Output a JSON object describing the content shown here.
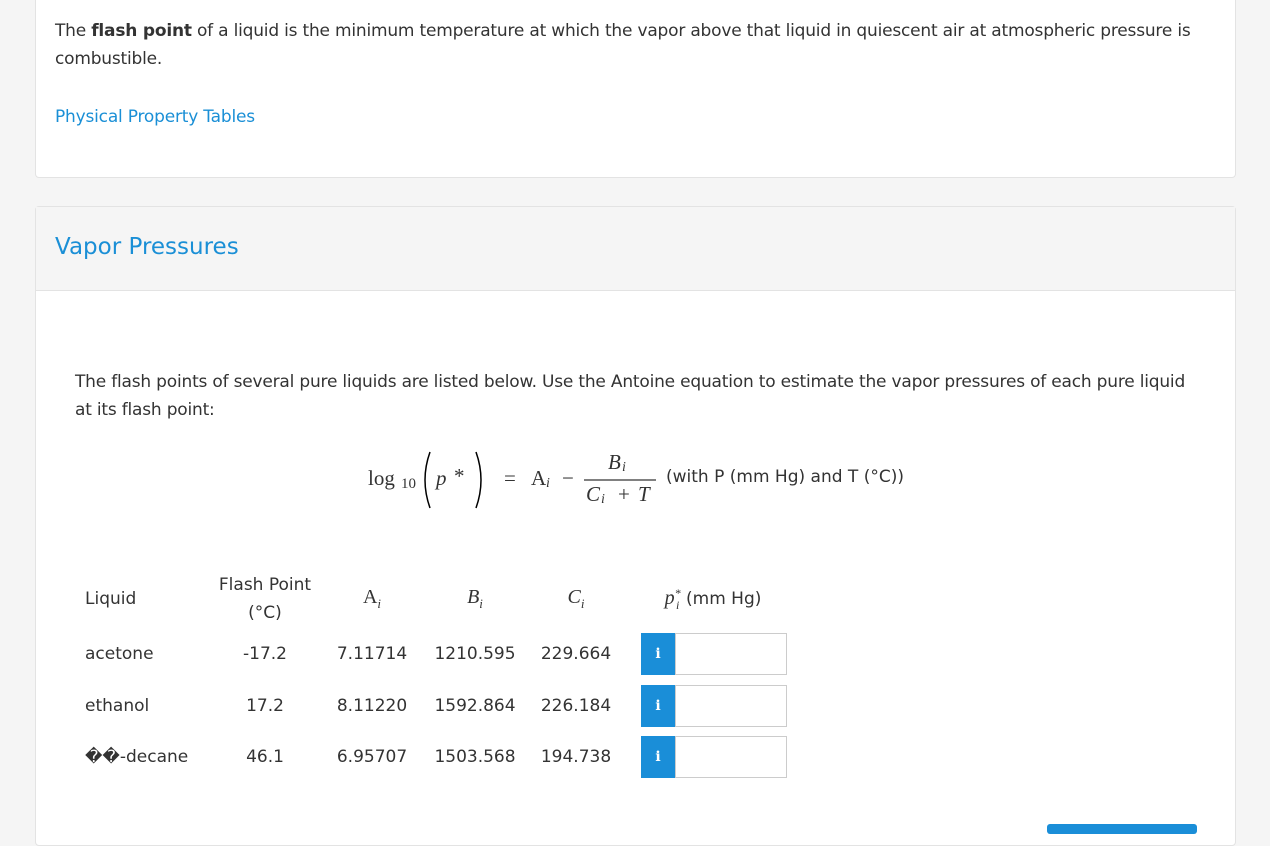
{
  "intro": {
    "before": "The ",
    "bold": "flash point",
    "after": " of a liquid is the minimum temperature at which the vapor above that liquid in quiescent air at atmospheric pressure is combustible.",
    "link": "Physical Property Tables"
  },
  "section": {
    "title": "Vapor Pressures",
    "question": "The flash points of several pure liquids are listed below. Use the Antoine equation to estimate the vapor pressures of each pure liquid at its flash point:",
    "equation": {
      "log": "log",
      "base": "10",
      "p": "p",
      "star": "*",
      "equals": "=",
      "A": "A",
      "A_sub": "i",
      "minus": "−",
      "B": "B",
      "B_sub": "i",
      "C": "C",
      "C_sub": "i",
      "plus": "+",
      "T": "T",
      "note": "(with P (mm Hg) and T (°C))"
    }
  },
  "table": {
    "headers": {
      "liquid": "Liquid",
      "flash_point": "Flash Point (°C)",
      "A": "A",
      "A_sub": "i",
      "B": "B",
      "B_sub": "i",
      "C": "C",
      "C_sub": "i",
      "p": "p",
      "p_sub": "i",
      "p_sup": "*",
      "p_unit": "(mm Hg)"
    },
    "info_label": "i",
    "rows": [
      [
        "acetone",
        "-17.2",
        "7.11714",
        "1210.595",
        "229.664"
      ],
      [
        "ethanol",
        "17.2",
        "8.11220",
        "1592.864",
        "226.184"
      ],
      [
        "��-decane",
        "46.1",
        "6.95707",
        "1503.568",
        "194.738"
      ]
    ]
  }
}
